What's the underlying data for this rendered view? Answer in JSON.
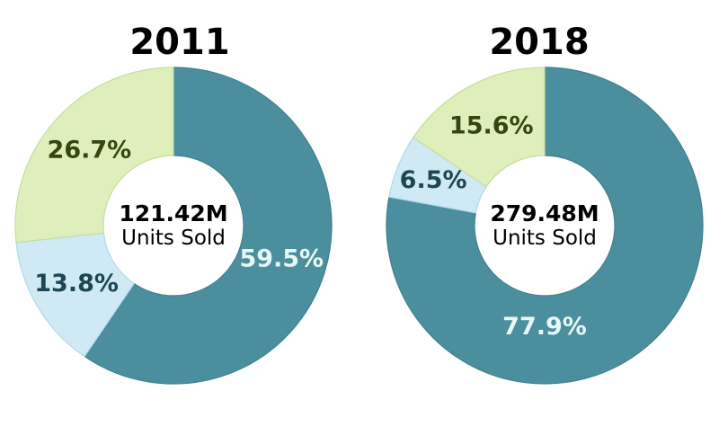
{
  "page": {
    "background_color": "#ffffff",
    "text_color": "#000000"
  },
  "chart_data": [
    {
      "type": "pie",
      "donut": true,
      "title": "2011",
      "center_value": "121.42M",
      "center_label": "Units Sold",
      "start_angle_deg": 0,
      "direction": "clockwise",
      "legend": "none",
      "slices": [
        {
          "label": "59.5%",
          "value": 59.5,
          "color": "#4B8E9E",
          "border": "#41808F",
          "label_color": "#E7F7F4"
        },
        {
          "label": "13.8%",
          "value": 13.8,
          "color": "#CFEAF4",
          "border": "#B2D9E6",
          "label_color": "#1D4754"
        },
        {
          "label": "26.7%",
          "value": 26.7,
          "color": "#DEEFBB",
          "border": "#C6DD9C",
          "label_color": "#35470F"
        }
      ]
    },
    {
      "type": "pie",
      "donut": true,
      "title": "2018",
      "center_value": "279.48M",
      "center_label": "Units Sold",
      "start_angle_deg": 0,
      "direction": "clockwise",
      "legend": "none",
      "slices": [
        {
          "label": "77.9%",
          "value": 77.9,
          "color": "#4B8E9E",
          "border": "#41808F",
          "label_color": "#E7F7F4",
          "label_angle_deg": 180,
          "label_radius_frac": 0.64
        },
        {
          "label": "6.5%",
          "value": 6.5,
          "color": "#CFEAF4",
          "border": "#B2D9E6",
          "label_color": "#1D4754",
          "label_radius_frac": 0.76
        },
        {
          "label": "15.6%",
          "value": 15.6,
          "color": "#DEEFBB",
          "border": "#C6DD9C",
          "label_color": "#35470F"
        }
      ]
    }
  ]
}
